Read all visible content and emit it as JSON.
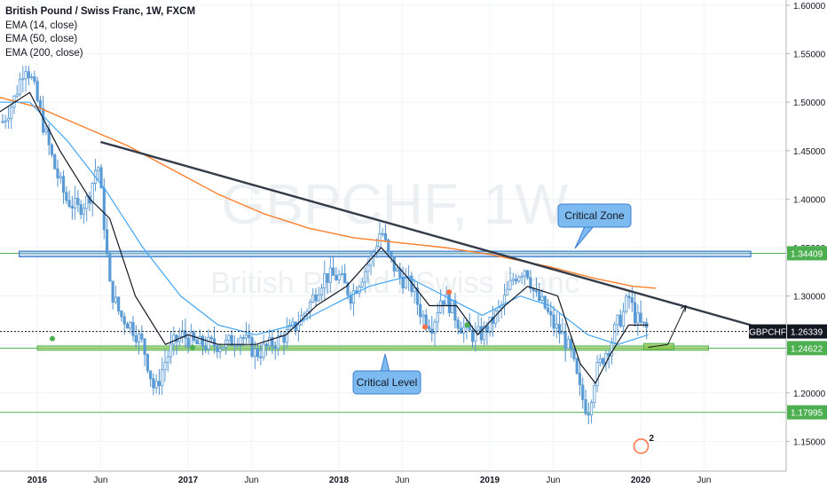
{
  "header": {
    "title": "British Pound / Swiss Franc, 1W, FXCM",
    "indicators": [
      "EMA (14, close)",
      "EMA (50, close)",
      "EMA (200, close)"
    ]
  },
  "chart_data": {
    "type": "candlestick",
    "symbol": "GBPCHF",
    "interval": "1W",
    "watermark_symbol": "GBPCHF, 1W",
    "watermark_name": "British Pound / Swiss Franc",
    "ylim": [
      1.125,
      1.605
    ],
    "x_ticks": [
      "2016",
      "Jun",
      "2017",
      "Jun",
      "2018",
      "Jun",
      "2019",
      "Jun",
      "2020",
      "Jun"
    ],
    "x_ticks_t": [
      2016.0,
      2016.42,
      2017.0,
      2017.42,
      2018.0,
      2018.42,
      2019.0,
      2019.42,
      2020.0,
      2020.42
    ],
    "y_ticks": [
      "1.60000",
      "1.55000",
      "1.50000",
      "1.45000",
      "1.40000",
      "1.35000",
      "1.30000",
      "1.25000",
      "1.20000",
      "1.15000"
    ],
    "y_ticks_v": [
      1.6,
      1.55,
      1.5,
      1.45,
      1.4,
      1.35,
      1.3,
      1.25,
      1.2,
      1.15
    ],
    "price_labels": [
      {
        "text": "1.34409",
        "value": 1.34409,
        "color": "#4caf50"
      },
      {
        "text": "1.26339",
        "value": 1.26339,
        "color": "#131722",
        "badge": "GBPCHF"
      },
      {
        "text": "1.24622",
        "value": 1.24622,
        "color": "#4caf50"
      },
      {
        "text": "1.17995",
        "value": 1.17995,
        "color": "#4caf50"
      }
    ],
    "callouts": [
      {
        "text": "Critical Zone"
      },
      {
        "text": "Critical Level"
      }
    ],
    "price_path": [
      [
        2015.77,
        1.48
      ],
      [
        2015.84,
        1.5
      ],
      [
        2015.92,
        1.54
      ],
      [
        2015.97,
        1.52
      ],
      [
        2016.05,
        1.47
      ],
      [
        2016.12,
        1.43
      ],
      [
        2016.19,
        1.4
      ],
      [
        2016.27,
        1.39
      ],
      [
        2016.34,
        1.4
      ],
      [
        2016.4,
        1.44
      ],
      [
        2016.44,
        1.38
      ],
      [
        2016.48,
        1.31
      ],
      [
        2016.55,
        1.28
      ],
      [
        2016.62,
        1.27
      ],
      [
        2016.7,
        1.25
      ],
      [
        2016.78,
        1.2
      ],
      [
        2016.84,
        1.23
      ],
      [
        2016.9,
        1.25
      ],
      [
        2016.96,
        1.26
      ],
      [
        2017.05,
        1.25
      ],
      [
        2017.15,
        1.25
      ],
      [
        2017.25,
        1.25
      ],
      [
        2017.35,
        1.26
      ],
      [
        2017.45,
        1.24
      ],
      [
        2017.55,
        1.25
      ],
      [
        2017.65,
        1.26
      ],
      [
        2017.72,
        1.27
      ],
      [
        2017.8,
        1.29
      ],
      [
        2017.9,
        1.32
      ],
      [
        2018.0,
        1.32
      ],
      [
        2018.08,
        1.3
      ],
      [
        2018.15,
        1.32
      ],
      [
        2018.22,
        1.34
      ],
      [
        2018.28,
        1.37
      ],
      [
        2018.33,
        1.34
      ],
      [
        2018.4,
        1.32
      ],
      [
        2018.48,
        1.31
      ],
      [
        2018.55,
        1.28
      ],
      [
        2018.62,
        1.27
      ],
      [
        2018.68,
        1.3
      ],
      [
        2018.74,
        1.29
      ],
      [
        2018.8,
        1.27
      ],
      [
        2018.88,
        1.26
      ],
      [
        2018.94,
        1.26
      ],
      [
        2019.0,
        1.27
      ],
      [
        2019.08,
        1.29
      ],
      [
        2019.16,
        1.32
      ],
      [
        2019.24,
        1.33
      ],
      [
        2019.3,
        1.3
      ],
      [
        2019.36,
        1.29
      ],
      [
        2019.42,
        1.27
      ],
      [
        2019.48,
        1.26
      ],
      [
        2019.54,
        1.24
      ],
      [
        2019.6,
        1.2
      ],
      [
        2019.65,
        1.18
      ],
      [
        2019.7,
        1.22
      ],
      [
        2019.76,
        1.24
      ],
      [
        2019.8,
        1.25
      ],
      [
        2019.84,
        1.27
      ],
      [
        2019.88,
        1.28
      ],
      [
        2019.92,
        1.3
      ],
      [
        2019.96,
        1.28
      ],
      [
        2020.0,
        1.27
      ],
      [
        2020.05,
        1.265
      ]
    ],
    "ema_200": [
      [
        2015.75,
        1.505
      ],
      [
        2016.0,
        1.495
      ],
      [
        2016.3,
        1.475
      ],
      [
        2016.6,
        1.455
      ],
      [
        2016.9,
        1.43
      ],
      [
        2017.2,
        1.405
      ],
      [
        2017.5,
        1.385
      ],
      [
        2017.8,
        1.37
      ],
      [
        2018.1,
        1.36
      ],
      [
        2018.4,
        1.355
      ],
      [
        2018.7,
        1.35
      ],
      [
        2019.0,
        1.343
      ],
      [
        2019.4,
        1.33
      ],
      [
        2019.7,
        1.318
      ],
      [
        2019.95,
        1.31
      ],
      [
        2020.1,
        1.308
      ]
    ],
    "ema_50": [
      [
        2015.75,
        1.5
      ],
      [
        2015.95,
        1.5
      ],
      [
        2016.2,
        1.46
      ],
      [
        2016.45,
        1.41
      ],
      [
        2016.7,
        1.35
      ],
      [
        2016.95,
        1.3
      ],
      [
        2017.2,
        1.27
      ],
      [
        2017.45,
        1.26
      ],
      [
        2017.7,
        1.27
      ],
      [
        2017.95,
        1.29
      ],
      [
        2018.2,
        1.31
      ],
      [
        2018.45,
        1.32
      ],
      [
        2018.7,
        1.3
      ],
      [
        2018.95,
        1.28
      ],
      [
        2019.2,
        1.3
      ],
      [
        2019.4,
        1.29
      ],
      [
        2019.65,
        1.26
      ],
      [
        2019.85,
        1.25
      ],
      [
        2020.05,
        1.26
      ]
    ],
    "ema_14": [
      [
        2015.75,
        1.49
      ],
      [
        2015.95,
        1.51
      ],
      [
        2016.15,
        1.45
      ],
      [
        2016.35,
        1.4
      ],
      [
        2016.48,
        1.38
      ],
      [
        2016.65,
        1.3
      ],
      [
        2016.85,
        1.25
      ],
      [
        2017.0,
        1.26
      ],
      [
        2017.2,
        1.25
      ],
      [
        2017.45,
        1.25
      ],
      [
        2017.65,
        1.26
      ],
      [
        2017.85,
        1.29
      ],
      [
        2018.05,
        1.31
      ],
      [
        2018.28,
        1.35
      ],
      [
        2018.45,
        1.32
      ],
      [
        2018.6,
        1.29
      ],
      [
        2018.78,
        1.29
      ],
      [
        2018.92,
        1.26
      ],
      [
        2019.1,
        1.29
      ],
      [
        2019.25,
        1.31
      ],
      [
        2019.45,
        1.3
      ],
      [
        2019.6,
        1.23
      ],
      [
        2019.7,
        1.21
      ],
      [
        2019.8,
        1.24
      ],
      [
        2019.92,
        1.27
      ],
      [
        2020.05,
        1.27
      ]
    ],
    "trendline": {
      "from": [
        2016.42,
        1.459
      ],
      "to": [
        2020.73,
        1.27
      ]
    },
    "zone": {
      "low": 1.3405,
      "high": 1.3462
    },
    "levels": [
      1.34409,
      1.24622,
      1.17995
    ],
    "level_band": {
      "from": 2016.0,
      "to": 2020.45,
      "low": 1.244,
      "high": 1.2484
    },
    "forecast_arrow": [
      [
        2020.05,
        1.247
      ],
      [
        2020.18,
        1.25
      ],
      [
        2020.3,
        1.29
      ]
    ],
    "reaction_dots": [
      {
        "t": 2016.1,
        "v": 1.256,
        "color": "#4caf50"
      },
      {
        "t": 2017.03,
        "v": 1.247,
        "color": "#4caf50"
      },
      {
        "t": 2018.73,
        "v": 1.304,
        "color": "#ff7043"
      },
      {
        "t": 2018.57,
        "v": 1.268,
        "color": "#ff7043"
      },
      {
        "t": 2018.85,
        "v": 1.27,
        "color": "#4caf50"
      }
    ],
    "badge": {
      "text": "2",
      "t": 2020.05,
      "v": 1.145
    }
  }
}
